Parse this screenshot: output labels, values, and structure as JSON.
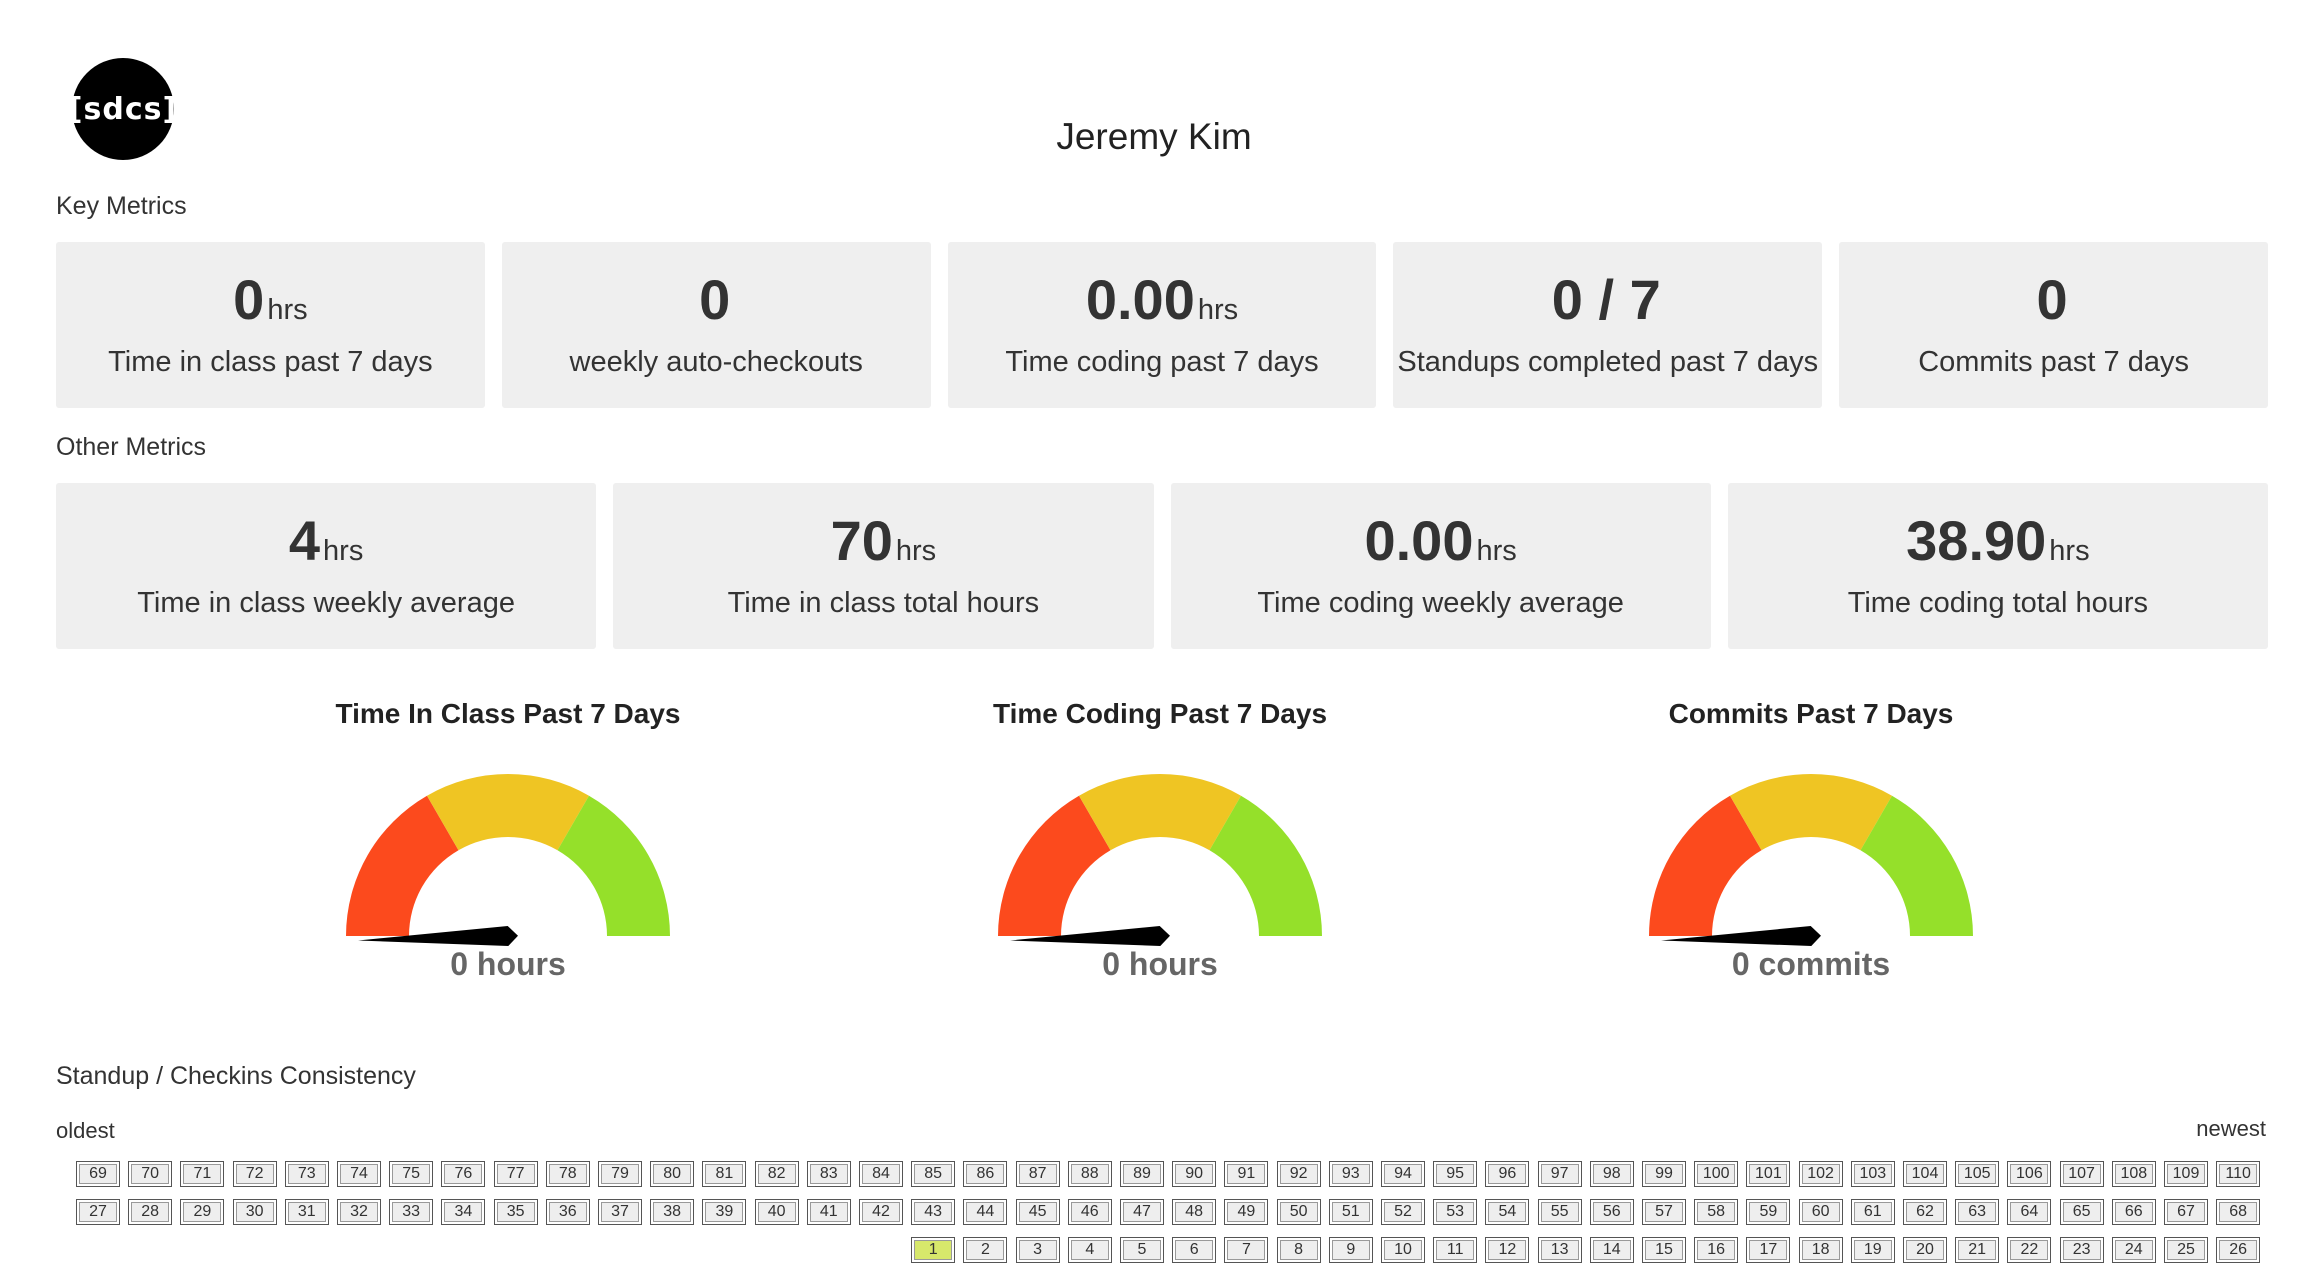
{
  "header": {
    "logo_text": "[sdcs]",
    "student_name": "Jeremy Kim"
  },
  "key_metrics": {
    "label": "Key Metrics",
    "cards": [
      {
        "value": "0",
        "unit": "hrs",
        "description": "Time in class past 7 days"
      },
      {
        "value": "0",
        "unit": "",
        "description": "weekly auto-checkouts"
      },
      {
        "value": "0.00",
        "unit": "hrs",
        "description": "Time coding past 7 days"
      },
      {
        "value": "0 / 7",
        "unit": "",
        "description": "Standups completed past 7 days"
      },
      {
        "value": "0",
        "unit": "",
        "description": "Commits past 7 days"
      }
    ]
  },
  "other_metrics": {
    "label": "Other Metrics",
    "cards": [
      {
        "value": "4",
        "unit": "hrs",
        "description": "Time in class weekly average"
      },
      {
        "value": "70",
        "unit": "hrs",
        "description": "Time in class total hours"
      },
      {
        "value": "0.00",
        "unit": "hrs",
        "description": "Time coding weekly average"
      },
      {
        "value": "38.90",
        "unit": "hrs",
        "description": "Time coding total hours"
      }
    ]
  },
  "gauges": [
    {
      "title": "Time In Class Past 7 Days",
      "value_label": "0 hours",
      "level": 0
    },
    {
      "title": "Time Coding Past 7 Days",
      "value_label": "0 hours",
      "level": 0
    },
    {
      "title": "Commits Past 7 Days",
      "value_label": "0 commits",
      "level": 0
    }
  ],
  "gauge_colors": {
    "low": "#fc4a1d",
    "mid": "#efc523",
    "high": "#95e02a",
    "needle": "#000000"
  },
  "consistency": {
    "label": "Standup / Checkins Consistency",
    "oldest_label": "oldest",
    "newest_label": "newest",
    "rows": [
      [
        "69",
        "70",
        "71",
        "72",
        "73",
        "74",
        "75",
        "76",
        "77",
        "78",
        "79",
        "80",
        "81",
        "82",
        "83",
        "84",
        "85",
        "86",
        "87",
        "88",
        "89",
        "90",
        "91",
        "92",
        "93",
        "94",
        "95",
        "96",
        "97",
        "98",
        "99",
        "100",
        "101",
        "102",
        "103",
        "104",
        "105",
        "106",
        "107",
        "108",
        "109",
        "110"
      ],
      [
        "27",
        "28",
        "29",
        "30",
        "31",
        "32",
        "33",
        "34",
        "35",
        "36",
        "37",
        "38",
        "39",
        "40",
        "41",
        "42",
        "43",
        "44",
        "45",
        "46",
        "47",
        "48",
        "49",
        "50",
        "51",
        "52",
        "53",
        "54",
        "55",
        "56",
        "57",
        "58",
        "59",
        "60",
        "61",
        "62",
        "63",
        "64",
        "65",
        "66",
        "67",
        "68"
      ],
      [
        "1",
        "2",
        "3",
        "4",
        "5",
        "6",
        "7",
        "8",
        "9",
        "10",
        "11",
        "12",
        "13",
        "14",
        "15",
        "16",
        "17",
        "18",
        "19",
        "20",
        "21",
        "22",
        "23",
        "24",
        "25",
        "26"
      ]
    ],
    "completed_days": [
      "1"
    ],
    "completed_color": "#d7e86b"
  }
}
